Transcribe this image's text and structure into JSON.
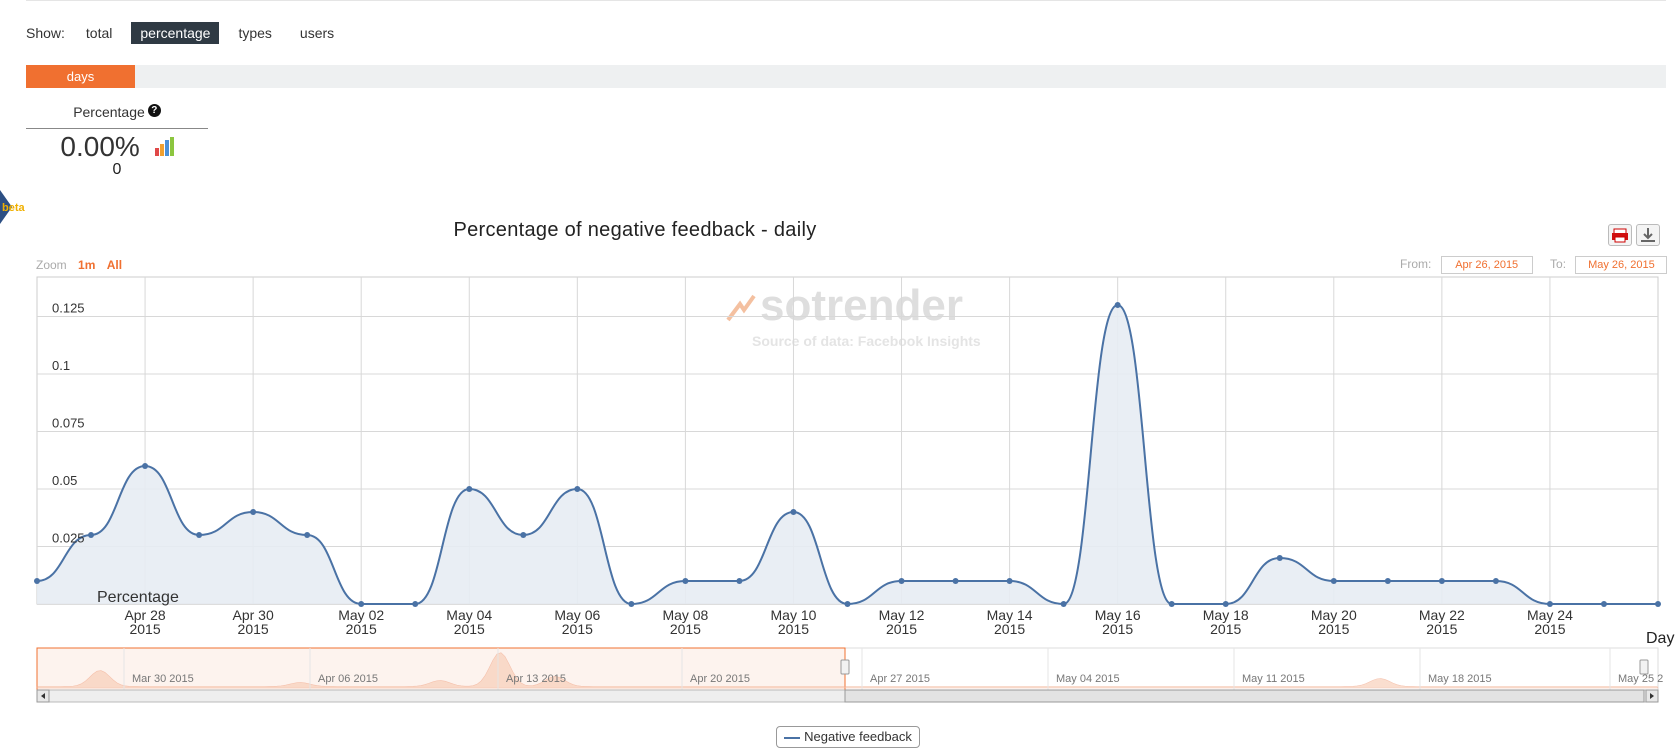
{
  "show": {
    "label": "Show:",
    "options": [
      "total",
      "percentage",
      "types",
      "users"
    ],
    "active": "percentage"
  },
  "period_tab": "days",
  "metric": {
    "title": "Percentage",
    "help_icon": "question-icon",
    "value": "0.00%",
    "count": "0",
    "chart_icon": "bar-chart-icon"
  },
  "beta_badge": "beta",
  "chart_title": "Percentage of negative feedback - daily",
  "zoom": {
    "label": "Zoom",
    "options": [
      "1m",
      "All"
    ]
  },
  "range": {
    "from_label": "From:",
    "from": "Apr 26, 2015",
    "to_label": "To:",
    "to": "May 26, 2015"
  },
  "watermark": {
    "brand": "sotrender",
    "source": "Source of data: Facebook Insights"
  },
  "legend": "Negative feedback",
  "axis_day_label": "Day",
  "colors": {
    "accent": "#f07030",
    "line": "#4a72a5",
    "fill": "#e7ecf3",
    "active_tab": "#2f3a44"
  },
  "navigator": {
    "labels": [
      "Mar 30 2015",
      "Apr 06 2015",
      "Apr 13 2015",
      "Apr 20 2015",
      "Apr 27 2015",
      "May 04 2015",
      "May 11 2015",
      "May 18 2015",
      "May 25 2"
    ]
  },
  "chart_data": {
    "type": "area",
    "title": "Percentage of negative feedback - daily",
    "series": [
      {
        "name": "Percentage",
        "x": [
          "Apr 26 2015",
          "Apr 27 2015",
          "Apr 28 2015",
          "Apr 29 2015",
          "Apr 30 2015",
          "May 01 2015",
          "May 02 2015",
          "May 03 2015",
          "May 04 2015",
          "May 05 2015",
          "May 06 2015",
          "May 07 2015",
          "May 08 2015",
          "May 09 2015",
          "May 10 2015",
          "May 11 2015",
          "May 12 2015",
          "May 13 2015",
          "May 14 2015",
          "May 15 2015",
          "May 16 2015",
          "May 17 2015",
          "May 18 2015",
          "May 19 2015",
          "May 20 2015",
          "May 21 2015",
          "May 22 2015",
          "May 23 2015",
          "May 24 2015",
          "May 25 2015",
          "May 26 2015"
        ],
        "values": [
          0.01,
          0.03,
          0.06,
          0.03,
          0.04,
          0.03,
          0,
          0,
          0.05,
          0.03,
          0.05,
          0,
          0.01,
          0.01,
          0.04,
          0,
          0.01,
          0.01,
          0.01,
          0,
          0.13,
          0,
          0,
          0.02,
          0.01,
          0.01,
          0.01,
          0.01,
          0,
          0,
          0
        ]
      }
    ],
    "x_tick_labels": [
      [
        "Apr 28",
        "2015"
      ],
      [
        "Apr 30",
        "2015"
      ],
      [
        "May 02",
        "2015"
      ],
      [
        "May 04",
        "2015"
      ],
      [
        "May 06",
        "2015"
      ],
      [
        "May 08",
        "2015"
      ],
      [
        "May 10",
        "2015"
      ],
      [
        "May 12",
        "2015"
      ],
      [
        "May 14",
        "2015"
      ],
      [
        "May 16",
        "2015"
      ],
      [
        "May 18",
        "2015"
      ],
      [
        "May 20",
        "2015"
      ],
      [
        "May 22",
        "2015"
      ],
      [
        "May 24",
        "2015"
      ]
    ],
    "y_ticks": [
      0.025,
      0.05,
      0.075,
      0.1,
      0.125
    ],
    "y_tick_labels": [
      "0.025",
      "0.05",
      "0.075",
      "0.1",
      "0.125"
    ],
    "ylim": [
      0,
      0.14
    ],
    "grid": true
  }
}
